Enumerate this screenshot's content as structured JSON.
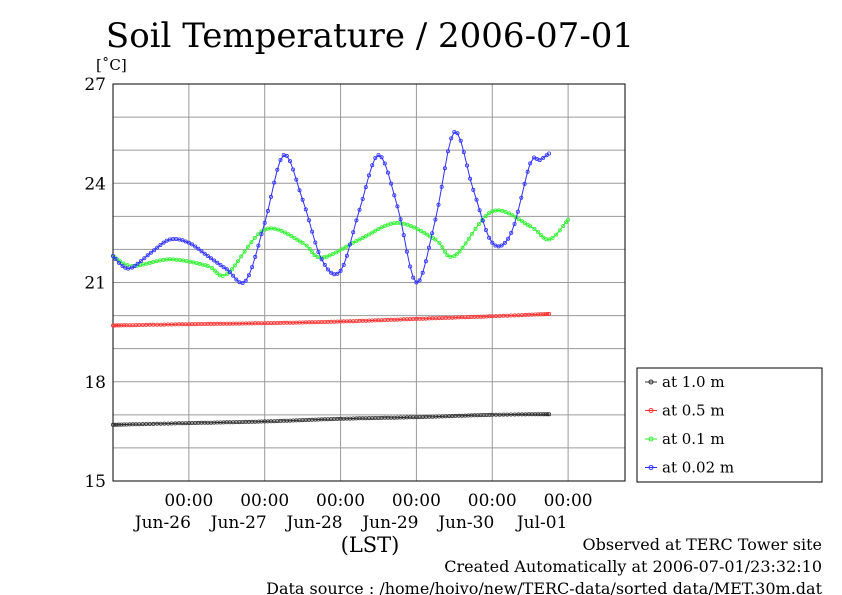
{
  "chart_data": {
    "type": "line",
    "title": "Soil Temperature / 2006-07-01",
    "ylabel": "[˚C]",
    "xlabel": "(LST)",
    "ylim": [
      15,
      27
    ],
    "yticks": [
      "15",
      "18",
      "21",
      "24",
      "27"
    ],
    "xlim": [
      "2006-06-25 00:00",
      "2006-07-01 18:00"
    ],
    "xticks": [
      {
        "time": "00:00",
        "date": "Jun-26"
      },
      {
        "time": "00:00",
        "date": "Jun-27"
      },
      {
        "time": "00:00",
        "date": "Jun-28"
      },
      {
        "time": "00:00",
        "date": "Jun-29"
      },
      {
        "time": "00:00",
        "date": "Jun-30"
      },
      {
        "time": "00:00",
        "date": "Jul-01"
      }
    ],
    "grid": true,
    "legend_position": "right",
    "series": [
      {
        "name": "at 1.0 m",
        "color": "#303030",
        "points": [
          [
            "06-25 00:00",
            16.7
          ],
          [
            "06-26 00:00",
            16.75
          ],
          [
            "06-27 00:00",
            16.8
          ],
          [
            "06-28 00:00",
            16.88
          ],
          [
            "06-29 00:00",
            16.93
          ],
          [
            "06-30 00:00",
            17.0
          ],
          [
            "06-30 18:00",
            17.02
          ]
        ]
      },
      {
        "name": "at 0.5 m",
        "color": "#ff3030",
        "points": [
          [
            "06-25 00:00",
            19.7
          ],
          [
            "06-26 00:00",
            19.74
          ],
          [
            "06-27 00:00",
            19.77
          ],
          [
            "06-28 00:00",
            19.82
          ],
          [
            "06-29 00:00",
            19.9
          ],
          [
            "06-30 00:00",
            19.98
          ],
          [
            "06-30 18:00",
            20.05
          ]
        ]
      },
      {
        "name": "at 0.1 m",
        "color": "#30f030",
        "points": [
          [
            "06-25 00:00",
            21.8
          ],
          [
            "06-25 06:00",
            21.5
          ],
          [
            "06-25 18:00",
            21.7
          ],
          [
            "06-26 06:00",
            21.5
          ],
          [
            "06-26 12:00",
            21.25
          ],
          [
            "06-27 00:00",
            22.6
          ],
          [
            "06-27 12:00",
            22.2
          ],
          [
            "06-27 18:00",
            21.75
          ],
          [
            "06-28 06:00",
            22.3
          ],
          [
            "06-28 18:00",
            22.8
          ],
          [
            "06-29 06:00",
            22.3
          ],
          [
            "06-29 12:00",
            21.8
          ],
          [
            "06-30 00:00",
            23.15
          ],
          [
            "06-30 12:00",
            22.7
          ],
          [
            "06-30 18:00",
            22.3
          ],
          [
            "07-01 00:00",
            22.9
          ]
        ]
      },
      {
        "name": "at 0.02 m",
        "color": "#3030ff",
        "points": [
          [
            "06-25 00:00",
            21.8
          ],
          [
            "06-25 03:00",
            21.5
          ],
          [
            "06-25 06:00",
            21.45
          ],
          [
            "06-25 12:00",
            21.9
          ],
          [
            "06-25 18:00",
            22.3
          ],
          [
            "06-26 00:00",
            22.2
          ],
          [
            "06-26 06:00",
            21.8
          ],
          [
            "06-26 12:00",
            21.4
          ],
          [
            "06-26 18:00",
            21.05
          ],
          [
            "06-27 00:00",
            22.8
          ],
          [
            "06-27 06:00",
            24.85
          ],
          [
            "06-27 12:00",
            23.5
          ],
          [
            "06-27 18:00",
            21.7
          ],
          [
            "06-28 00:00",
            21.35
          ],
          [
            "06-28 06:00",
            23.2
          ],
          [
            "06-28 12:00",
            24.85
          ],
          [
            "06-28 18:00",
            23.3
          ],
          [
            "06-29 00:00",
            21.0
          ],
          [
            "06-29 06:00",
            22.9
          ],
          [
            "06-29 12:00",
            25.55
          ],
          [
            "06-29 18:00",
            23.8
          ],
          [
            "06-30 00:00",
            22.2
          ],
          [
            "06-30 06:00",
            22.5
          ],
          [
            "06-30 12:00",
            24.6
          ],
          [
            "06-30 15:00",
            24.7
          ],
          [
            "06-30 18:00",
            24.9
          ]
        ]
      }
    ]
  },
  "footer": {
    "line1": "Observed at TERC Tower site",
    "line2": "Created Automatically at 2006-07-01/23:32:10",
    "line3": "Data source : /home/hoivo/new/TERC-data/sorted data/MET.30m.dat"
  }
}
